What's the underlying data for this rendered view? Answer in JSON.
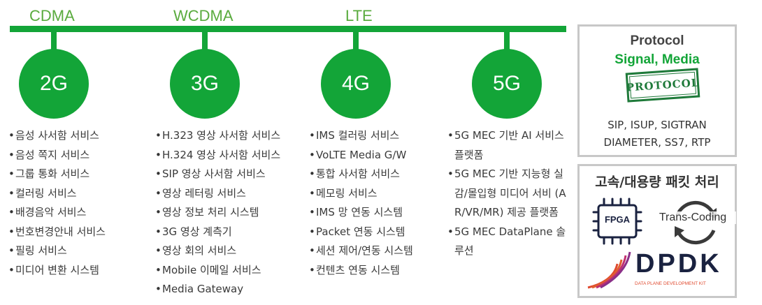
{
  "techs": [
    "CDMA",
    "WCDMA",
    "LTE"
  ],
  "generations": [
    "2G",
    "3G",
    "4G",
    "5G"
  ],
  "services": {
    "2g": [
      "음성 사서함 서비스",
      "음성 쪽지 서비스",
      "그룹 통화 서비스",
      "컬러링 서비스",
      "배경음악 서비스",
      "번호변경안내 서비스",
      "필링 서비스",
      "미디어 변환 시스템"
    ],
    "3g": [
      "H.323 영상 사서함 서비스",
      "H.324 영상 사서함 서비스",
      "SIP 영상 사서함 서비스",
      "영상 레터링 서비스",
      "영상 정보 처리 시스템",
      "3G 영상 계측기",
      "영상 회의 서비스",
      "Mobile 이메일 서비스",
      "Media Gateway"
    ],
    "4g": [
      "IMS 컬러링 서비스",
      "VoLTE Media G/W",
      "통합 사서함 서비스",
      "메모링 서비스",
      "IMS 망 연동 시스템",
      "Packet 연동 시스템",
      "세션 제어/연동 시스템",
      "컨텐츠 연동 시스템"
    ],
    "5g": [
      "5G MEC 기반 AI 서비스 플랫폼",
      "5G MEC 기반 지능형 실감/몰입형 미디어 서비 (AR/VR/MR) 제공 플랫폼",
      "5G MEC DataPlane 솔루션"
    ]
  },
  "protocol_panel": {
    "title": "Protocol",
    "subtitle": "Signal, Media",
    "stamp": "PROTOCOL",
    "line1": "SIP, ISUP, SIGTRAN",
    "line2": "DIAMETER, SS7, RTP"
  },
  "packet_panel": {
    "title": "고속/대용량 패킷 처리",
    "fpga": "FPGA",
    "transcoding": "Trans-Coding",
    "dpdk": "DPDK",
    "dpdk_sub": "DATA PLANE DEVELOPMENT KIT"
  },
  "colors": {
    "green": "#13a538",
    "tech_text": "#5aab3e",
    "dark_green": "#1f7a3a",
    "dpdk_navy": "#1a2240",
    "dpdk_red": "#e04a2f"
  }
}
